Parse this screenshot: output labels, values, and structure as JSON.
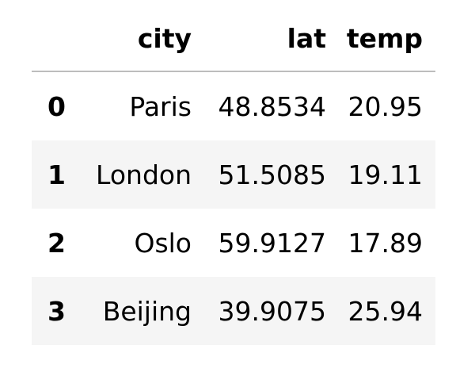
{
  "table": {
    "columns": [
      "city",
      "lat",
      "temp"
    ],
    "rows": [
      {
        "index": "0",
        "city": "Paris",
        "lat": "48.8534",
        "temp": "20.95"
      },
      {
        "index": "1",
        "city": "London",
        "lat": "51.5085",
        "temp": "19.11"
      },
      {
        "index": "2",
        "city": "Oslo",
        "lat": "59.9127",
        "temp": "17.89"
      },
      {
        "index": "3",
        "city": "Beijing",
        "lat": "39.9075",
        "temp": "25.94"
      }
    ]
  },
  "colors": {
    "row_stripe": "#f5f5f5",
    "header_rule": "#bdbdbd",
    "text": "#000000"
  }
}
